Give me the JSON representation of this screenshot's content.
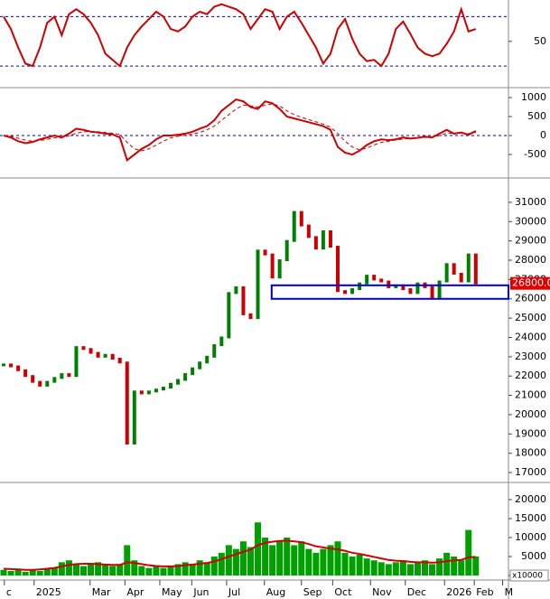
{
  "chart_data": [
    {
      "type": "line",
      "xlim": [
        0,
        70
      ],
      "ylim": [
        14,
        82
      ],
      "yticks": [
        50
      ],
      "reference_lines": [
        30,
        70
      ],
      "reference_color": "#0000aa",
      "series": [
        {
          "color": "#cc0000",
          "values": [
            70,
            60,
            45,
            32,
            30,
            45,
            65,
            70,
            55,
            72,
            76,
            72,
            65,
            55,
            40,
            35,
            30,
            45,
            55,
            62,
            68,
            74,
            70,
            60,
            58,
            62,
            70,
            74,
            72,
            78,
            80,
            78,
            76,
            72,
            60,
            68,
            76,
            74,
            60,
            70,
            74,
            65,
            55,
            45,
            32,
            40,
            60,
            68,
            52,
            40,
            34,
            35,
            30,
            40,
            60,
            66,
            56,
            45,
            40,
            38,
            40,
            48,
            58,
            76,
            58,
            60
          ]
        }
      ]
    },
    {
      "type": "line",
      "xlim": [
        0,
        70
      ],
      "ylim": [
        -1070,
        1190
      ],
      "yticks": [
        -500,
        0,
        500,
        1000
      ],
      "reference_lines": [
        0
      ],
      "reference_color": "#0000aa",
      "series": [
        {
          "color": "#cc0000",
          "values": [
            0,
            -50,
            -150,
            -200,
            -170,
            -100,
            -50,
            0,
            -50,
            50,
            180,
            150,
            100,
            80,
            50,
            30,
            -50,
            -650,
            -500,
            -350,
            -250,
            -100,
            0,
            0,
            20,
            50,
            100,
            180,
            250,
            400,
            650,
            800,
            950,
            900,
            750,
            700,
            900,
            850,
            700,
            500,
            450,
            400,
            350,
            300,
            250,
            150,
            -300,
            -450,
            -500,
            -400,
            -250,
            -150,
            -100,
            -120,
            -100,
            -50,
            -80,
            -60,
            -30,
            -50,
            50,
            150,
            50,
            80,
            20,
            120
          ]
        },
        {
          "color": "#cc0000",
          "dashed": true,
          "values": [
            0,
            -20,
            -70,
            -120,
            -150,
            -130,
            -100,
            -60,
            -40,
            -10,
            60,
            100,
            110,
            100,
            80,
            60,
            30,
            -180,
            -350,
            -400,
            -350,
            -250,
            -150,
            -60,
            -20,
            10,
            40,
            80,
            150,
            250,
            400,
            550,
            700,
            800,
            780,
            750,
            800,
            830,
            780,
            650,
            550,
            480,
            420,
            360,
            300,
            220,
            50,
            -150,
            -300,
            -380,
            -330,
            -250,
            -180,
            -150,
            -120,
            -90,
            -80,
            -70,
            -50,
            -50,
            0,
            60,
            60,
            70,
            50,
            80
          ]
        }
      ]
    },
    {
      "type": "price",
      "xlim": [
        0,
        70
      ],
      "ylim": [
        16580,
        32120
      ],
      "yticks": [
        17000,
        18000,
        19000,
        20000,
        21000,
        22000,
        23000,
        24000,
        25000,
        26000,
        27000,
        28000,
        29000,
        30000,
        31000
      ],
      "color_up": "#008000",
      "color_down": "#cc0000",
      "values": [
        22600,
        22500,
        22300,
        22000,
        21700,
        21500,
        21700,
        21900,
        22100,
        22000,
        23500,
        23400,
        23200,
        23000,
        23100,
        22900,
        22700,
        18500,
        21200,
        21100,
        21200,
        21300,
        21400,
        21600,
        21800,
        22100,
        22400,
        22700,
        23000,
        23600,
        24000,
        26300,
        26600,
        25200,
        25000,
        28500,
        28300,
        27100,
        28000,
        29000,
        30500,
        29800,
        29200,
        28600,
        29500,
        28700,
        26400,
        26300,
        26500,
        26800,
        27200,
        27000,
        26900,
        26600,
        26700,
        26500,
        26300,
        26800,
        26600,
        26000,
        26900,
        27800,
        27300,
        26900,
        28300,
        26800
      ],
      "last_price_label": "26800.0",
      "zone": [
        26000,
        26700
      ],
      "zone_start": 37.4,
      "zone_color": "#0000cc"
    },
    {
      "type": "bar",
      "xlim": [
        0,
        70
      ],
      "ylim": [
        -710,
        23810
      ],
      "yticks": [
        0,
        5000,
        10000,
        15000,
        20000
      ],
      "unit_label": "x10000",
      "color": "#00a000",
      "values": [
        1500,
        1200,
        1800,
        1000,
        1500,
        1200,
        1800,
        2000,
        3500,
        4000,
        3000,
        2500,
        3000,
        3500,
        2800,
        2500,
        3000,
        8000,
        4000,
        2500,
        2000,
        2500,
        2000,
        2500,
        3000,
        3500,
        3000,
        4000,
        3500,
        5000,
        6000,
        8000,
        7000,
        9000,
        7500,
        14000,
        10000,
        8000,
        9000,
        10000,
        8000,
        9000,
        7000,
        6000,
        7000,
        8000,
        9000,
        6000,
        5000,
        5500,
        4500,
        4000,
        3500,
        3000,
        3500,
        4000,
        3000,
        3500,
        4000,
        3000,
        4500,
        6000,
        5000,
        4000,
        12000,
        5000
      ],
      "average": {
        "color": "#cc0000",
        "values": [
          1800,
          1700,
          1600,
          1500,
          1500,
          1600,
          1800,
          2000,
          2400,
          2800,
          3000,
          3100,
          3100,
          3000,
          2900,
          2800,
          2800,
          3500,
          3300,
          3000,
          2700,
          2500,
          2400,
          2400,
          2500,
          2700,
          2900,
          3100,
          3300,
          3700,
          4300,
          5000,
          5600,
          6300,
          6800,
          8000,
          8600,
          8900,
          9100,
          9200,
          9000,
          8800,
          8300,
          7700,
          7400,
          7100,
          6900,
          6500,
          6000,
          5700,
          5300,
          4900,
          4500,
          4100,
          3900,
          3800,
          3600,
          3500,
          3500,
          3400,
          3500,
          3800,
          4000,
          4100,
          4800,
          4900
        ]
      },
      "xticks": [
        {
          "value": 0.6,
          "label": "c"
        },
        {
          "value": 4.7,
          "label": "2025"
        },
        {
          "value": 12.4,
          "label": "Mar"
        },
        {
          "value": 17.2,
          "label": "Apr"
        },
        {
          "value": 22,
          "label": "May"
        },
        {
          "value": 26.4,
          "label": "Jun"
        },
        {
          "value": 31.2,
          "label": "Jul"
        },
        {
          "value": 36.4,
          "label": "Aug"
        },
        {
          "value": 41.5,
          "label": "Sep"
        },
        {
          "value": 45.8,
          "label": "Oct"
        },
        {
          "value": 51,
          "label": "Nov"
        },
        {
          "value": 55.8,
          "label": "Dec"
        },
        {
          "value": 61.2,
          "label": "2026"
        },
        {
          "value": 65.3,
          "label": "Feb"
        },
        {
          "value": 69.2,
          "label": "M"
        }
      ]
    }
  ]
}
